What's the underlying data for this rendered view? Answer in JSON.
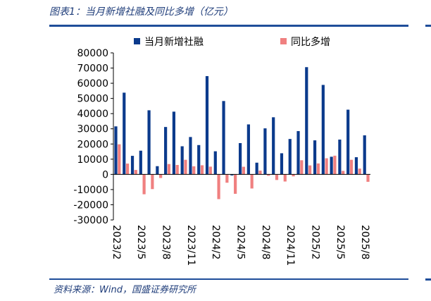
{
  "figure": {
    "title": "图表1：当月新增社融及同比多增（亿元）",
    "source": "资料来源：Wind，国盛证券研究所"
  },
  "colors": {
    "series_primary": "#0b3a8c",
    "series_secondary": "#f08080",
    "rule": "#1f4e9a"
  },
  "chart_data": {
    "type": "bar",
    "title": "",
    "xlabel": "",
    "ylabel": "",
    "ylim": [
      -30000,
      80000
    ],
    "yticks": [
      80000,
      70000,
      60000,
      50000,
      40000,
      30000,
      20000,
      10000,
      0,
      -10000,
      -20000,
      -30000
    ],
    "legend_position": "top",
    "grid": false,
    "categories": [
      "2023/2",
      "2023/3",
      "2023/4",
      "2023/5",
      "2023/6",
      "2023/7",
      "2023/8",
      "2023/9",
      "2023/10",
      "2023/11",
      "2023/12",
      "2024/1",
      "2024/2",
      "2024/3",
      "2024/4",
      "2024/5",
      "2024/6",
      "2024/7",
      "2024/8",
      "2024/9",
      "2024/10",
      "2024/11",
      "2024/12",
      "2025/1",
      "2025/2",
      "2025/3",
      "2025/4",
      "2025/5",
      "2025/6",
      "2025/7",
      "2025/8"
    ],
    "xtick_labels": [
      "2023/2",
      "2023/5",
      "2023/8",
      "2023/11",
      "2024/2",
      "2024/5",
      "2024/8",
      "2024/11",
      "2025/2",
      "2025/5",
      "2025/8"
    ],
    "series": [
      {
        "name": "当月新增社融",
        "values": [
          31600,
          53800,
          12200,
          15600,
          42200,
          5400,
          31200,
          41300,
          18500,
          24600,
          19300,
          64700,
          15200,
          48300,
          -700,
          20600,
          32900,
          7700,
          30300,
          37600,
          13900,
          23300,
          28500,
          70600,
          22400,
          58900,
          11600,
          22900,
          42600,
          11300,
          25700
        ]
      },
      {
        "name": "同比多增",
        "values": [
          19800,
          7100,
          2900,
          -13100,
          -9700,
          -2400,
          6800,
          6200,
          9600,
          5300,
          6000,
          5100,
          -16300,
          -5500,
          -12800,
          5000,
          -9300,
          2500,
          -900,
          -3700,
          -4700,
          -1300,
          9300,
          5900,
          7200,
          10600,
          12300,
          2300,
          9600,
          3800,
          -4900
        ]
      }
    ]
  }
}
